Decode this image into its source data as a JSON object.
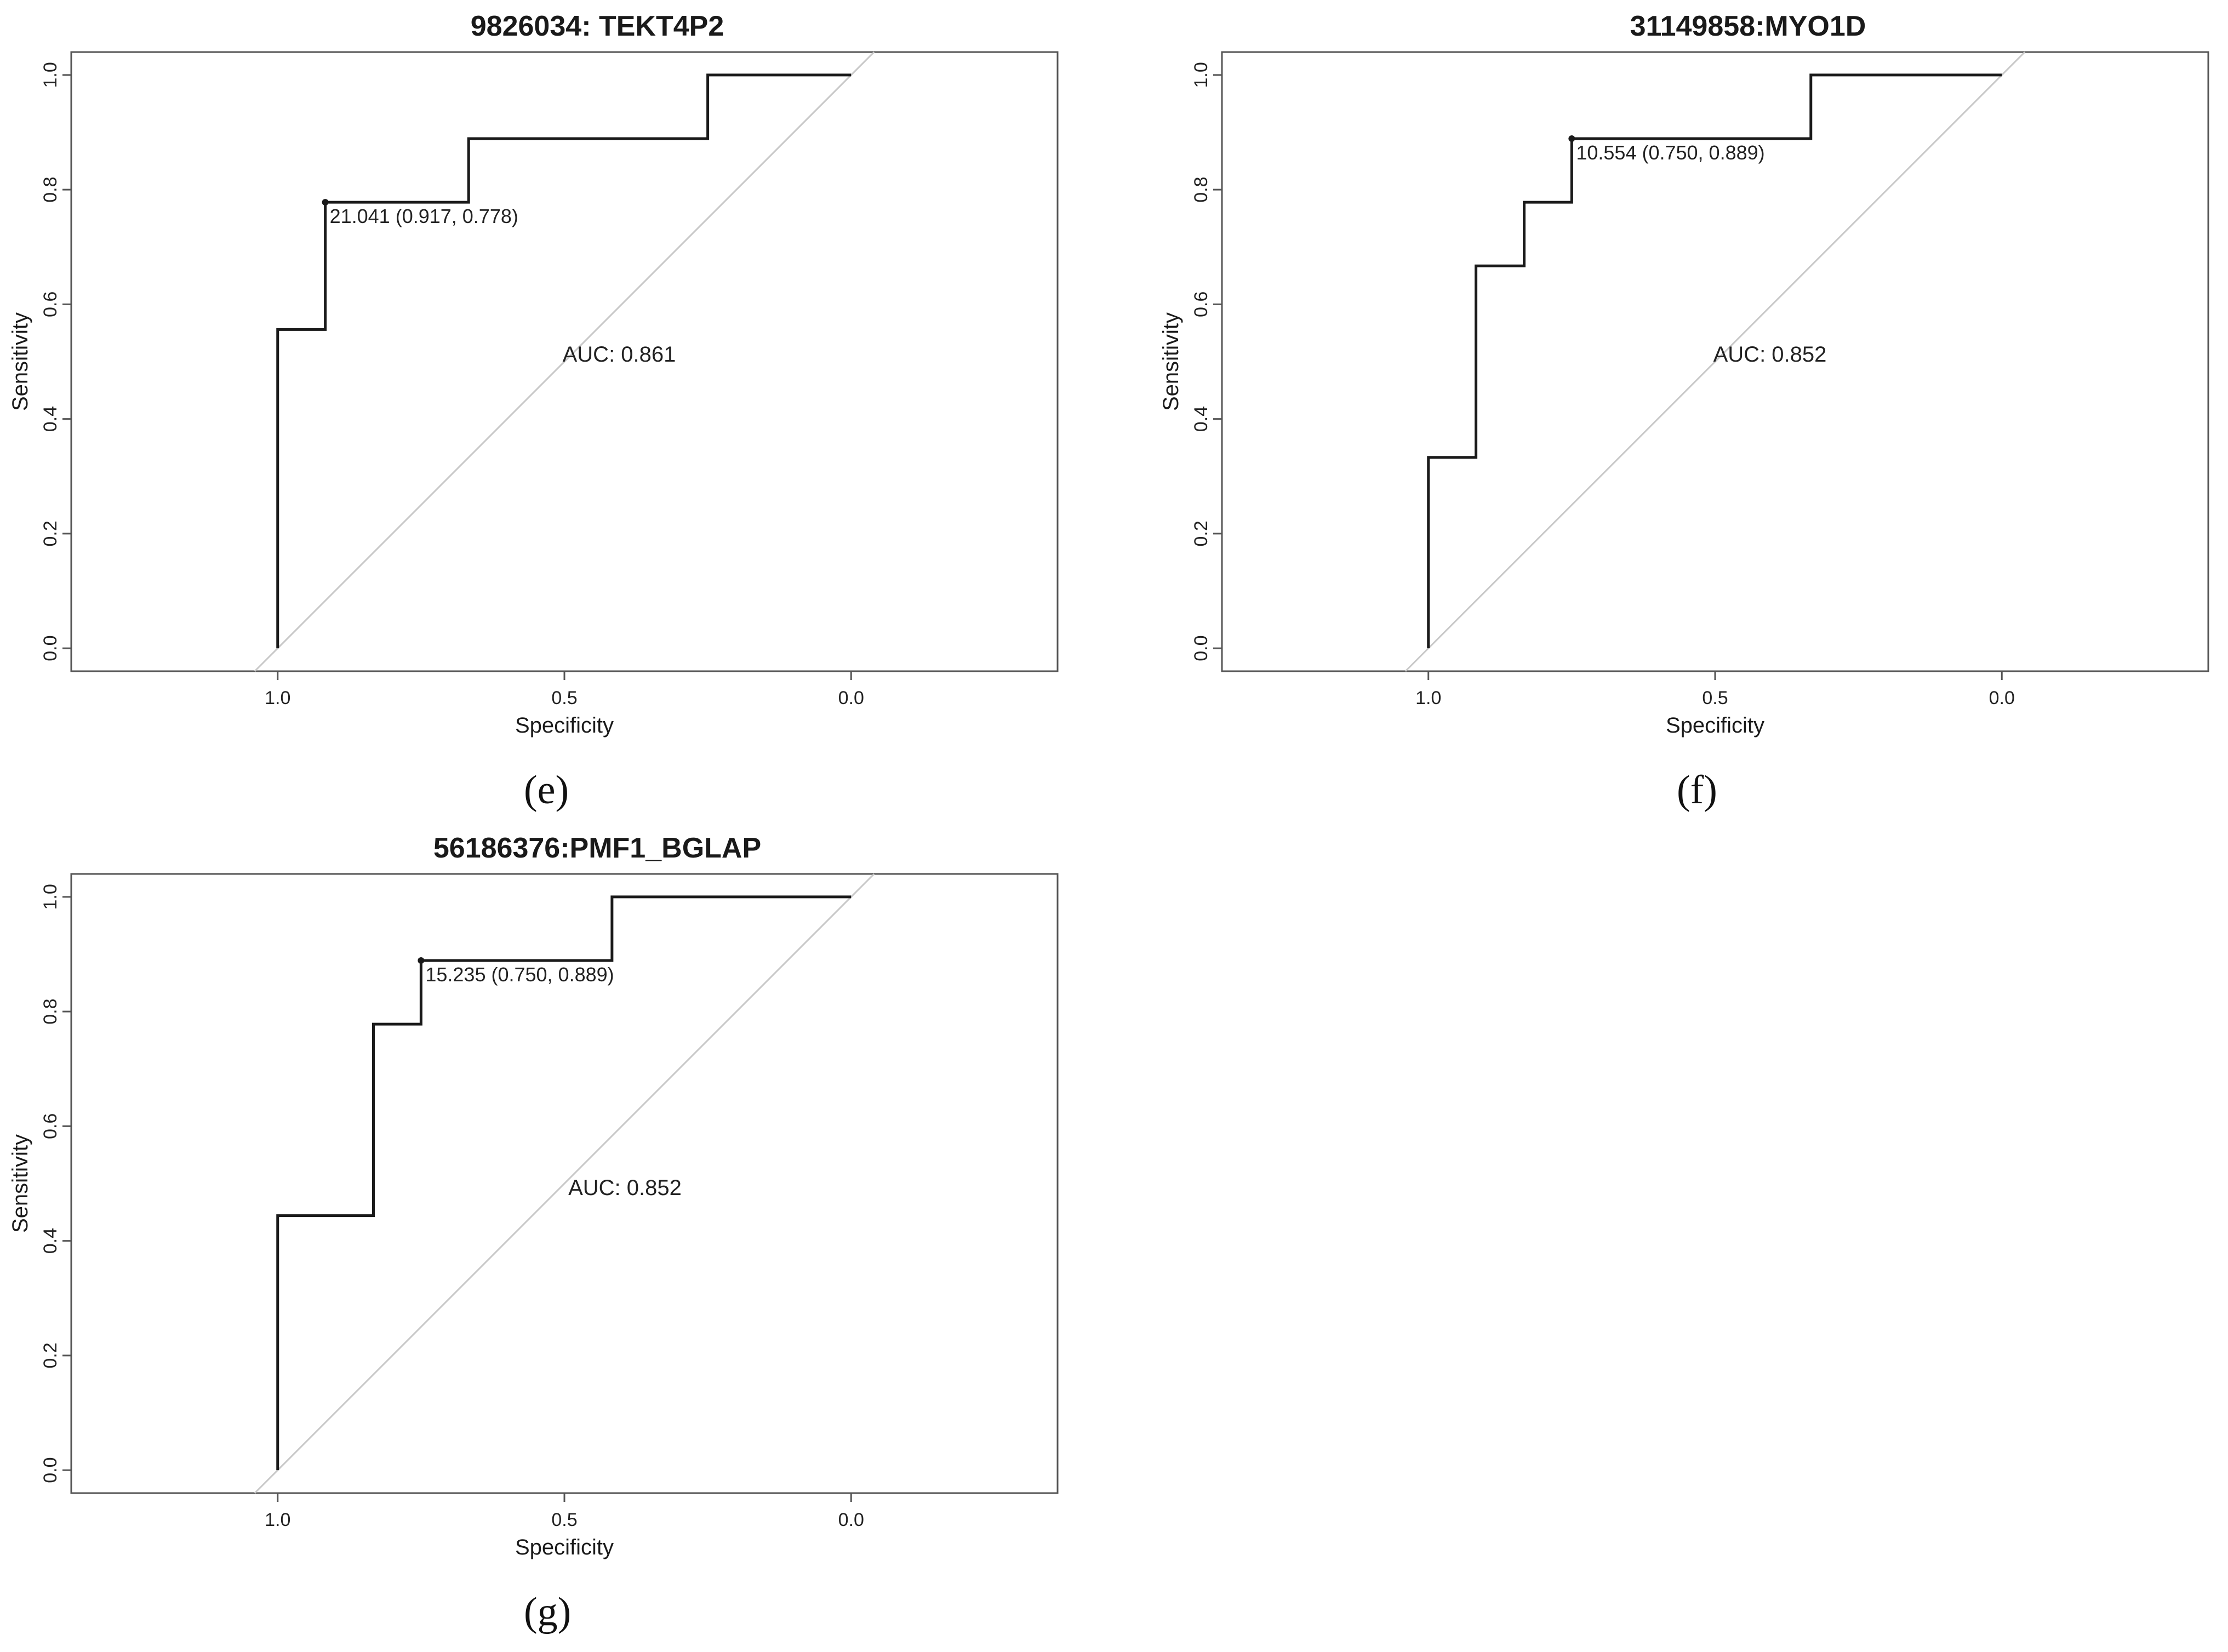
{
  "chart_data": [
    {
      "type": "line",
      "panel_label": "(e)",
      "title": "9826034: TEKT4P2",
      "xlabel": "Specificity",
      "ylabel": "Sensitivity",
      "x_reversed": true,
      "xlim": [
        1.36,
        -0.36
      ],
      "ylim": [
        -0.04,
        1.04
      ],
      "xticks": [
        "1.0",
        "0.5",
        "0.0"
      ],
      "xtick_values": [
        1.0,
        0.5,
        0.0
      ],
      "yticks": [
        "0.0",
        "0.2",
        "0.4",
        "0.6",
        "0.8",
        "1.0"
      ],
      "ytick_values": [
        0.0,
        0.2,
        0.4,
        0.6,
        0.8,
        1.0
      ],
      "series": [
        {
          "x": [
            1.0,
            1.0,
            0.917,
            0.917,
            0.667,
            0.667,
            0.25,
            0.25,
            0.0
          ],
          "y": [
            0.0,
            0.556,
            0.556,
            0.778,
            0.778,
            0.889,
            0.889,
            1.0,
            1.0
          ]
        }
      ],
      "reference_line": {
        "x": [
          1.0,
          0.0
        ],
        "y": [
          0.0,
          1.0
        ]
      },
      "threshold_point": {
        "x": 0.917,
        "y": 0.778,
        "label": "21.041 (0.917, 0.778)"
      },
      "auc_label": "AUC: 0.861",
      "auc_position": {
        "x": 0.5,
        "y": 0.5
      },
      "grid": false,
      "colors": {
        "curve": "#1a1a1a",
        "reference": "#c8c8c8",
        "frame": "#555555"
      }
    },
    {
      "type": "line",
      "panel_label": "(f)",
      "title": "31149858:MYO1D",
      "xlabel": "Specificity",
      "ylabel": "Sensitivity",
      "x_reversed": true,
      "xlim": [
        1.36,
        -0.36
      ],
      "ylim": [
        -0.04,
        1.04
      ],
      "xticks": [
        "1.0",
        "0.5",
        "0.0"
      ],
      "xtick_values": [
        1.0,
        0.5,
        0.0
      ],
      "yticks": [
        "0.0",
        "0.2",
        "0.4",
        "0.6",
        "0.8",
        "1.0"
      ],
      "ytick_values": [
        0.0,
        0.2,
        0.4,
        0.6,
        0.8,
        1.0
      ],
      "series": [
        {
          "x": [
            1.0,
            1.0,
            0.917,
            0.917,
            0.833,
            0.833,
            0.75,
            0.75,
            0.333,
            0.333,
            0.0
          ],
          "y": [
            0.0,
            0.333,
            0.333,
            0.667,
            0.667,
            0.778,
            0.778,
            0.889,
            0.889,
            1.0,
            1.0
          ]
        }
      ],
      "reference_line": {
        "x": [
          1.0,
          0.0
        ],
        "y": [
          0.0,
          1.0
        ]
      },
      "threshold_point": {
        "x": 0.75,
        "y": 0.889,
        "label": "10.554 (0.750, 0.889)"
      },
      "auc_label": "AUC: 0.852",
      "auc_position": {
        "x": 0.5,
        "y": 0.5
      },
      "grid": false,
      "colors": {
        "curve": "#1a1a1a",
        "reference": "#c8c8c8",
        "frame": "#555555"
      }
    },
    {
      "type": "line",
      "panel_label": "(g)",
      "title": "56186376:PMF1_BGLAP",
      "xlabel": "Specificity",
      "ylabel": "Sensitivity",
      "x_reversed": true,
      "xlim": [
        1.36,
        -0.36
      ],
      "ylim": [
        -0.04,
        1.04
      ],
      "xticks": [
        "1.0",
        "0.5",
        "0.0"
      ],
      "xtick_values": [
        1.0,
        0.5,
        0.0
      ],
      "yticks": [
        "0.0",
        "0.2",
        "0.4",
        "0.6",
        "0.8",
        "1.0"
      ],
      "ytick_values": [
        0.0,
        0.2,
        0.4,
        0.6,
        0.8,
        1.0
      ],
      "series": [
        {
          "x": [
            1.0,
            1.0,
            0.833,
            0.833,
            0.75,
            0.75,
            0.417,
            0.417,
            0.0
          ],
          "y": [
            0.0,
            0.444,
            0.444,
            0.778,
            0.778,
            0.889,
            0.889,
            1.0,
            1.0
          ]
        }
      ],
      "reference_line": {
        "x": [
          1.0,
          0.0
        ],
        "y": [
          0.0,
          1.0
        ]
      },
      "threshold_point": {
        "x": 0.75,
        "y": 0.889,
        "label": "15.235 (0.750, 0.889)"
      },
      "auc_label": "AUC: 0.852",
      "auc_position": {
        "x": 0.49,
        "y": 0.48
      },
      "grid": false,
      "colors": {
        "curve": "#1a1a1a",
        "reference": "#c8c8c8",
        "frame": "#555555"
      }
    }
  ]
}
